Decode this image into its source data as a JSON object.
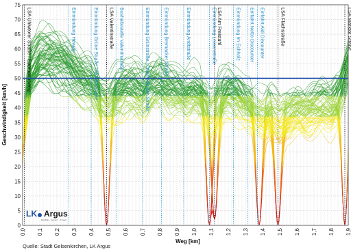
{
  "chart_data": {
    "type": "line",
    "xlabel": "Weg [km]",
    "ylabel": "Geschwindigkeit [km/h]",
    "xlim": [
      0,
      1.9
    ],
    "ylim": [
      0,
      75
    ],
    "x_ticks": [
      "0,0",
      "0,1",
      "0,2",
      "0,3",
      "0,4",
      "0,5",
      "0,6",
      "0,7",
      "0,8",
      "0,9",
      "1,0",
      "1,1",
      "1,2",
      "1,3",
      "1,4",
      "1,5",
      "1,6",
      "1,7",
      "1,8",
      "1,9"
    ],
    "y_ticks": [
      "0",
      "5",
      "10",
      "15",
      "20",
      "25",
      "30",
      "35",
      "40",
      "45",
      "50",
      "55",
      "60",
      "65",
      "70",
      "75"
    ],
    "grid": true,
    "reference_line": {
      "value": 50,
      "color": "#1f4fa8"
    },
    "color_scale": [
      "#c8281e",
      "#e8651e",
      "#f2b81a",
      "#f2e51a",
      "#9bd23a",
      "#2e9b2e"
    ],
    "markers": [
      {
        "x": 0.01,
        "label": "LSA Uhlwtorer Straße / Eppmannsweg",
        "kind": "signal"
      },
      {
        "x": 0.27,
        "label": "Einmündung Howeg",
        "kind": "junction"
      },
      {
        "x": 0.4,
        "label": "Einmündung Grüne Straße / Mühlenstraße",
        "kind": "junction"
      },
      {
        "x": 0.49,
        "label": "LSA Valentinstraße",
        "kind": "signal"
      },
      {
        "x": 0.55,
        "label": "Bushaltestelle Valentinstraße",
        "kind": "junction"
      },
      {
        "x": 0.7,
        "label": "Einmündung Grünstraße / Oberfeldinger Straße",
        "kind": "junction"
      },
      {
        "x": 0.81,
        "label": "Einmündung Bremacker Straße",
        "kind": "junction"
      },
      {
        "x": 0.94,
        "label": "Einmündung Andtstraße",
        "kind": "junction"
      },
      {
        "x": 1.09,
        "label": "Einmündung Leisenstraße",
        "kind": "junction"
      },
      {
        "x": 1.12,
        "label": "LSA Am Freistuhl",
        "kind": "signal"
      },
      {
        "x": 1.23,
        "label": "Einmündung Im Echholz",
        "kind": "junction"
      },
      {
        "x": 1.31,
        "label": "Einfahrt Netto Discounter",
        "kind": "junction"
      },
      {
        "x": 1.37,
        "label": "Einfahrt Aldi Discounter",
        "kind": "junction"
      },
      {
        "x": 1.49,
        "label": "LSA Flachsstraße",
        "kind": "signal"
      },
      {
        "x": 1.88,
        "label": "LSA Marktor Straße",
        "kind": "signal"
      }
    ],
    "median_profile": {
      "x": [
        0.0,
        0.05,
        0.1,
        0.15,
        0.2,
        0.25,
        0.3,
        0.35,
        0.4,
        0.45,
        0.5,
        0.55,
        0.6,
        0.65,
        0.7,
        0.75,
        0.8,
        0.85,
        0.9,
        0.95,
        1.0,
        1.05,
        1.1,
        1.15,
        1.2,
        1.25,
        1.3,
        1.35,
        1.4,
        1.45,
        1.5,
        1.55,
        1.6,
        1.65,
        1.7,
        1.75,
        1.8,
        1.85,
        1.9
      ],
      "y": [
        30,
        52,
        57,
        58,
        57,
        55,
        52,
        50,
        48,
        44,
        42,
        45,
        47,
        47,
        45,
        48,
        49,
        47,
        46,
        45,
        46,
        44,
        40,
        43,
        46,
        45,
        42,
        40,
        38,
        39,
        36,
        38,
        40,
        39,
        40,
        41,
        40,
        44,
        55
      ]
    },
    "dips": [
      {
        "x": 0.49,
        "min": 0
      },
      {
        "x": 1.09,
        "min": 0
      },
      {
        "x": 1.12,
        "min": 2
      },
      {
        "x": 1.38,
        "min": 0
      },
      {
        "x": 1.49,
        "min": 0
      },
      {
        "x": 1.88,
        "min": 0
      }
    ]
  },
  "source_text": "Quelle: Stadt Gelsenkirchen, LK Argus",
  "logo": {
    "part1": "LK",
    "part2": "Argus",
    "tagline": "Mobilität · Verkehr · Umwelt"
  }
}
